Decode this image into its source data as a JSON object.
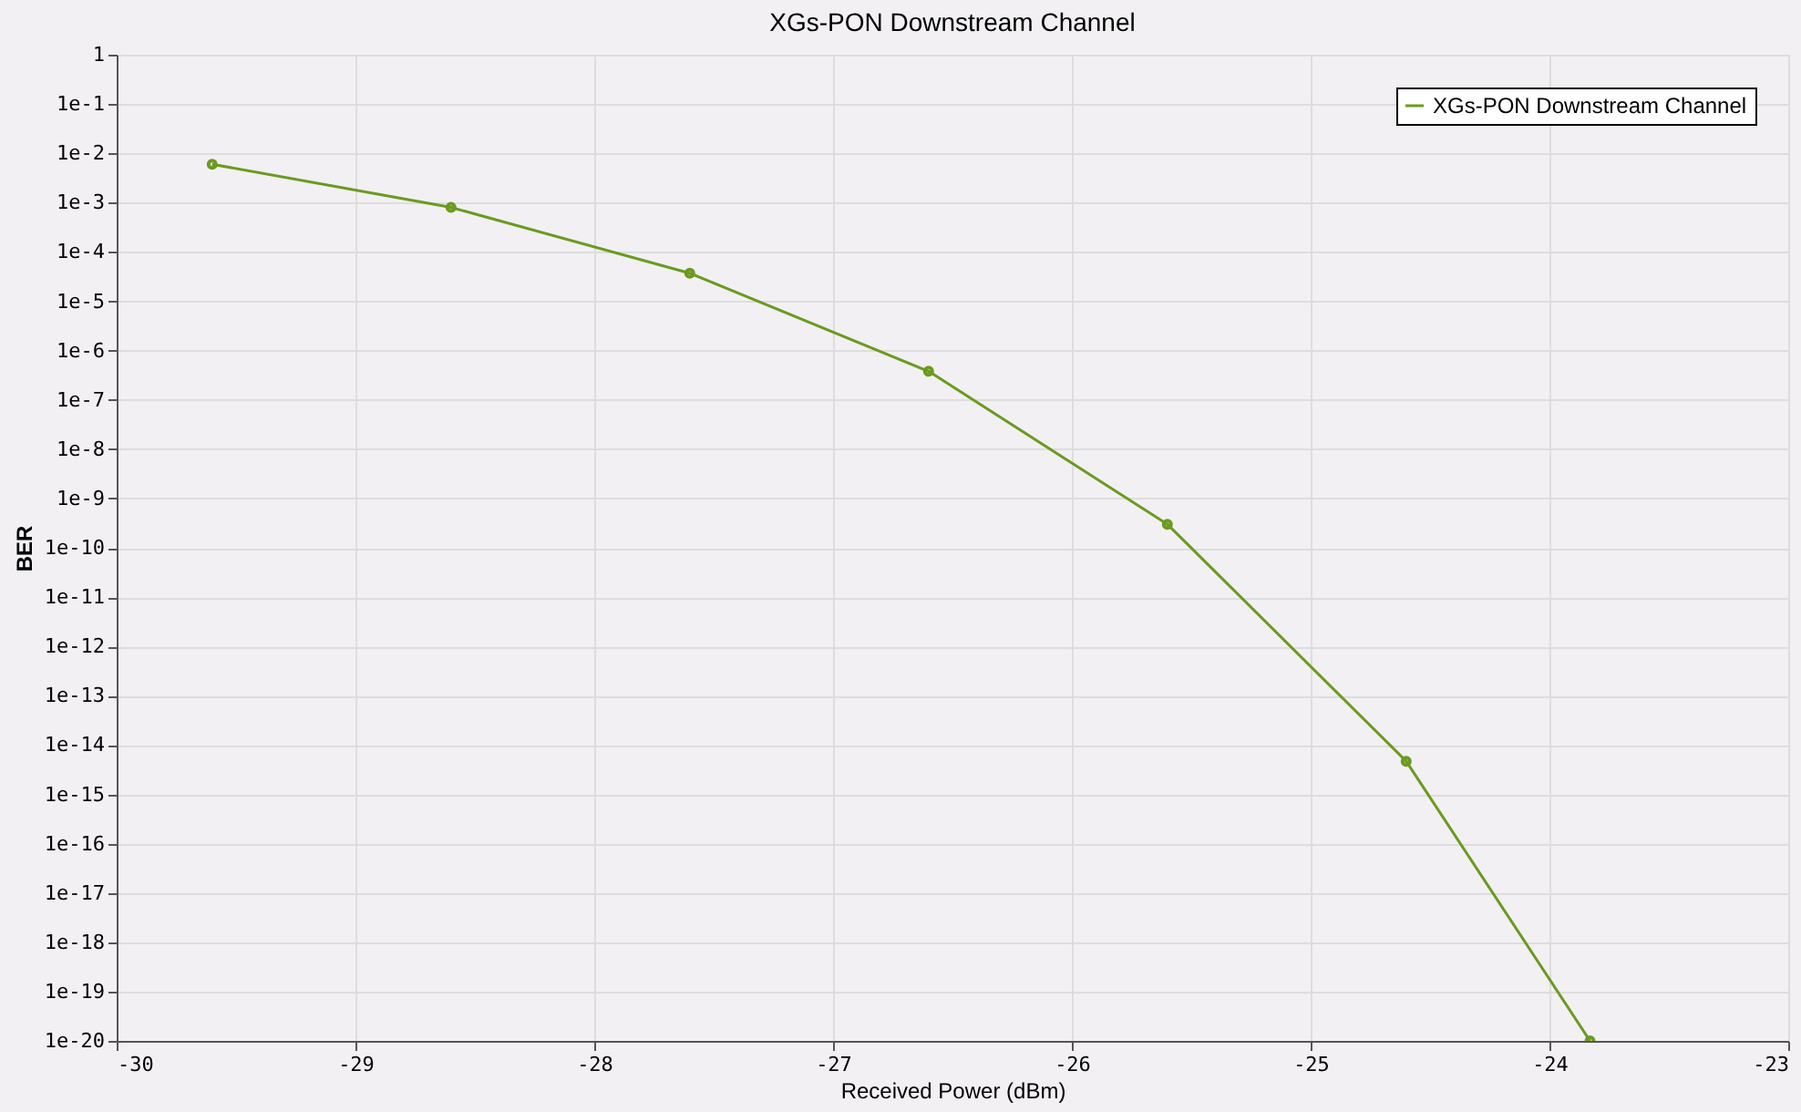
{
  "chart_data": {
    "type": "line",
    "title": "XGs-PON Downstream Channel",
    "xlabel": "Received Power (dBm)",
    "ylabel": "BER",
    "log": "y",
    "grid": true,
    "legend": "top right",
    "marker": "circle",
    "line_style": "solid",
    "x": [
      -29.6,
      -28.6,
      -27.6,
      -26.6,
      -25.6,
      -24.6,
      -23.83
    ],
    "series": [
      {
        "name": "XGs-PON Downstream Channel",
        "color": "#6b9a1f",
        "values": [
          0.006,
          0.0008,
          3.7e-05,
          3.8e-07,
          3e-10,
          4.7e-15,
          1e-20
        ]
      }
    ],
    "xlim": [
      -30,
      -23
    ],
    "xticks": [
      -30,
      -29,
      -28,
      -27,
      -26,
      -25,
      -24,
      -23
    ],
    "ylim": [
      1e-20,
      1
    ],
    "yticks": [
      1,
      {
        "value": 0.1,
        "label": "1e-1"
      },
      {
        "value": 0.01,
        "label": "1e-2"
      },
      {
        "value": 0.001,
        "label": "1e-3"
      },
      {
        "value": 0.0001,
        "label": "1e-4"
      },
      {
        "value": 1e-05,
        "label": "1e-5"
      },
      {
        "value": 1e-06,
        "label": "1e-6"
      },
      {
        "value": 1e-07,
        "label": "1e-7"
      },
      {
        "value": 1e-08,
        "label": "1e-8"
      },
      {
        "value": 1e-09,
        "label": "1e-9"
      },
      {
        "value": 1e-10,
        "label": "1e-10"
      },
      {
        "value": 1e-11,
        "label": "1e-11"
      },
      {
        "value": 1e-12,
        "label": "1e-12"
      },
      {
        "value": 1e-13,
        "label": "1e-13"
      },
      {
        "value": 1e-14,
        "label": "1e-14"
      },
      {
        "value": 1e-15,
        "label": "1e-15"
      },
      {
        "value": 1e-16,
        "label": "1e-16"
      },
      {
        "value": 1e-17,
        "label": "1e-17"
      },
      {
        "value": 1e-18,
        "label": "1e-18"
      },
      {
        "value": 1e-19,
        "label": "1e-19"
      },
      {
        "value": 1e-20,
        "label": "1e-20"
      }
    ]
  }
}
